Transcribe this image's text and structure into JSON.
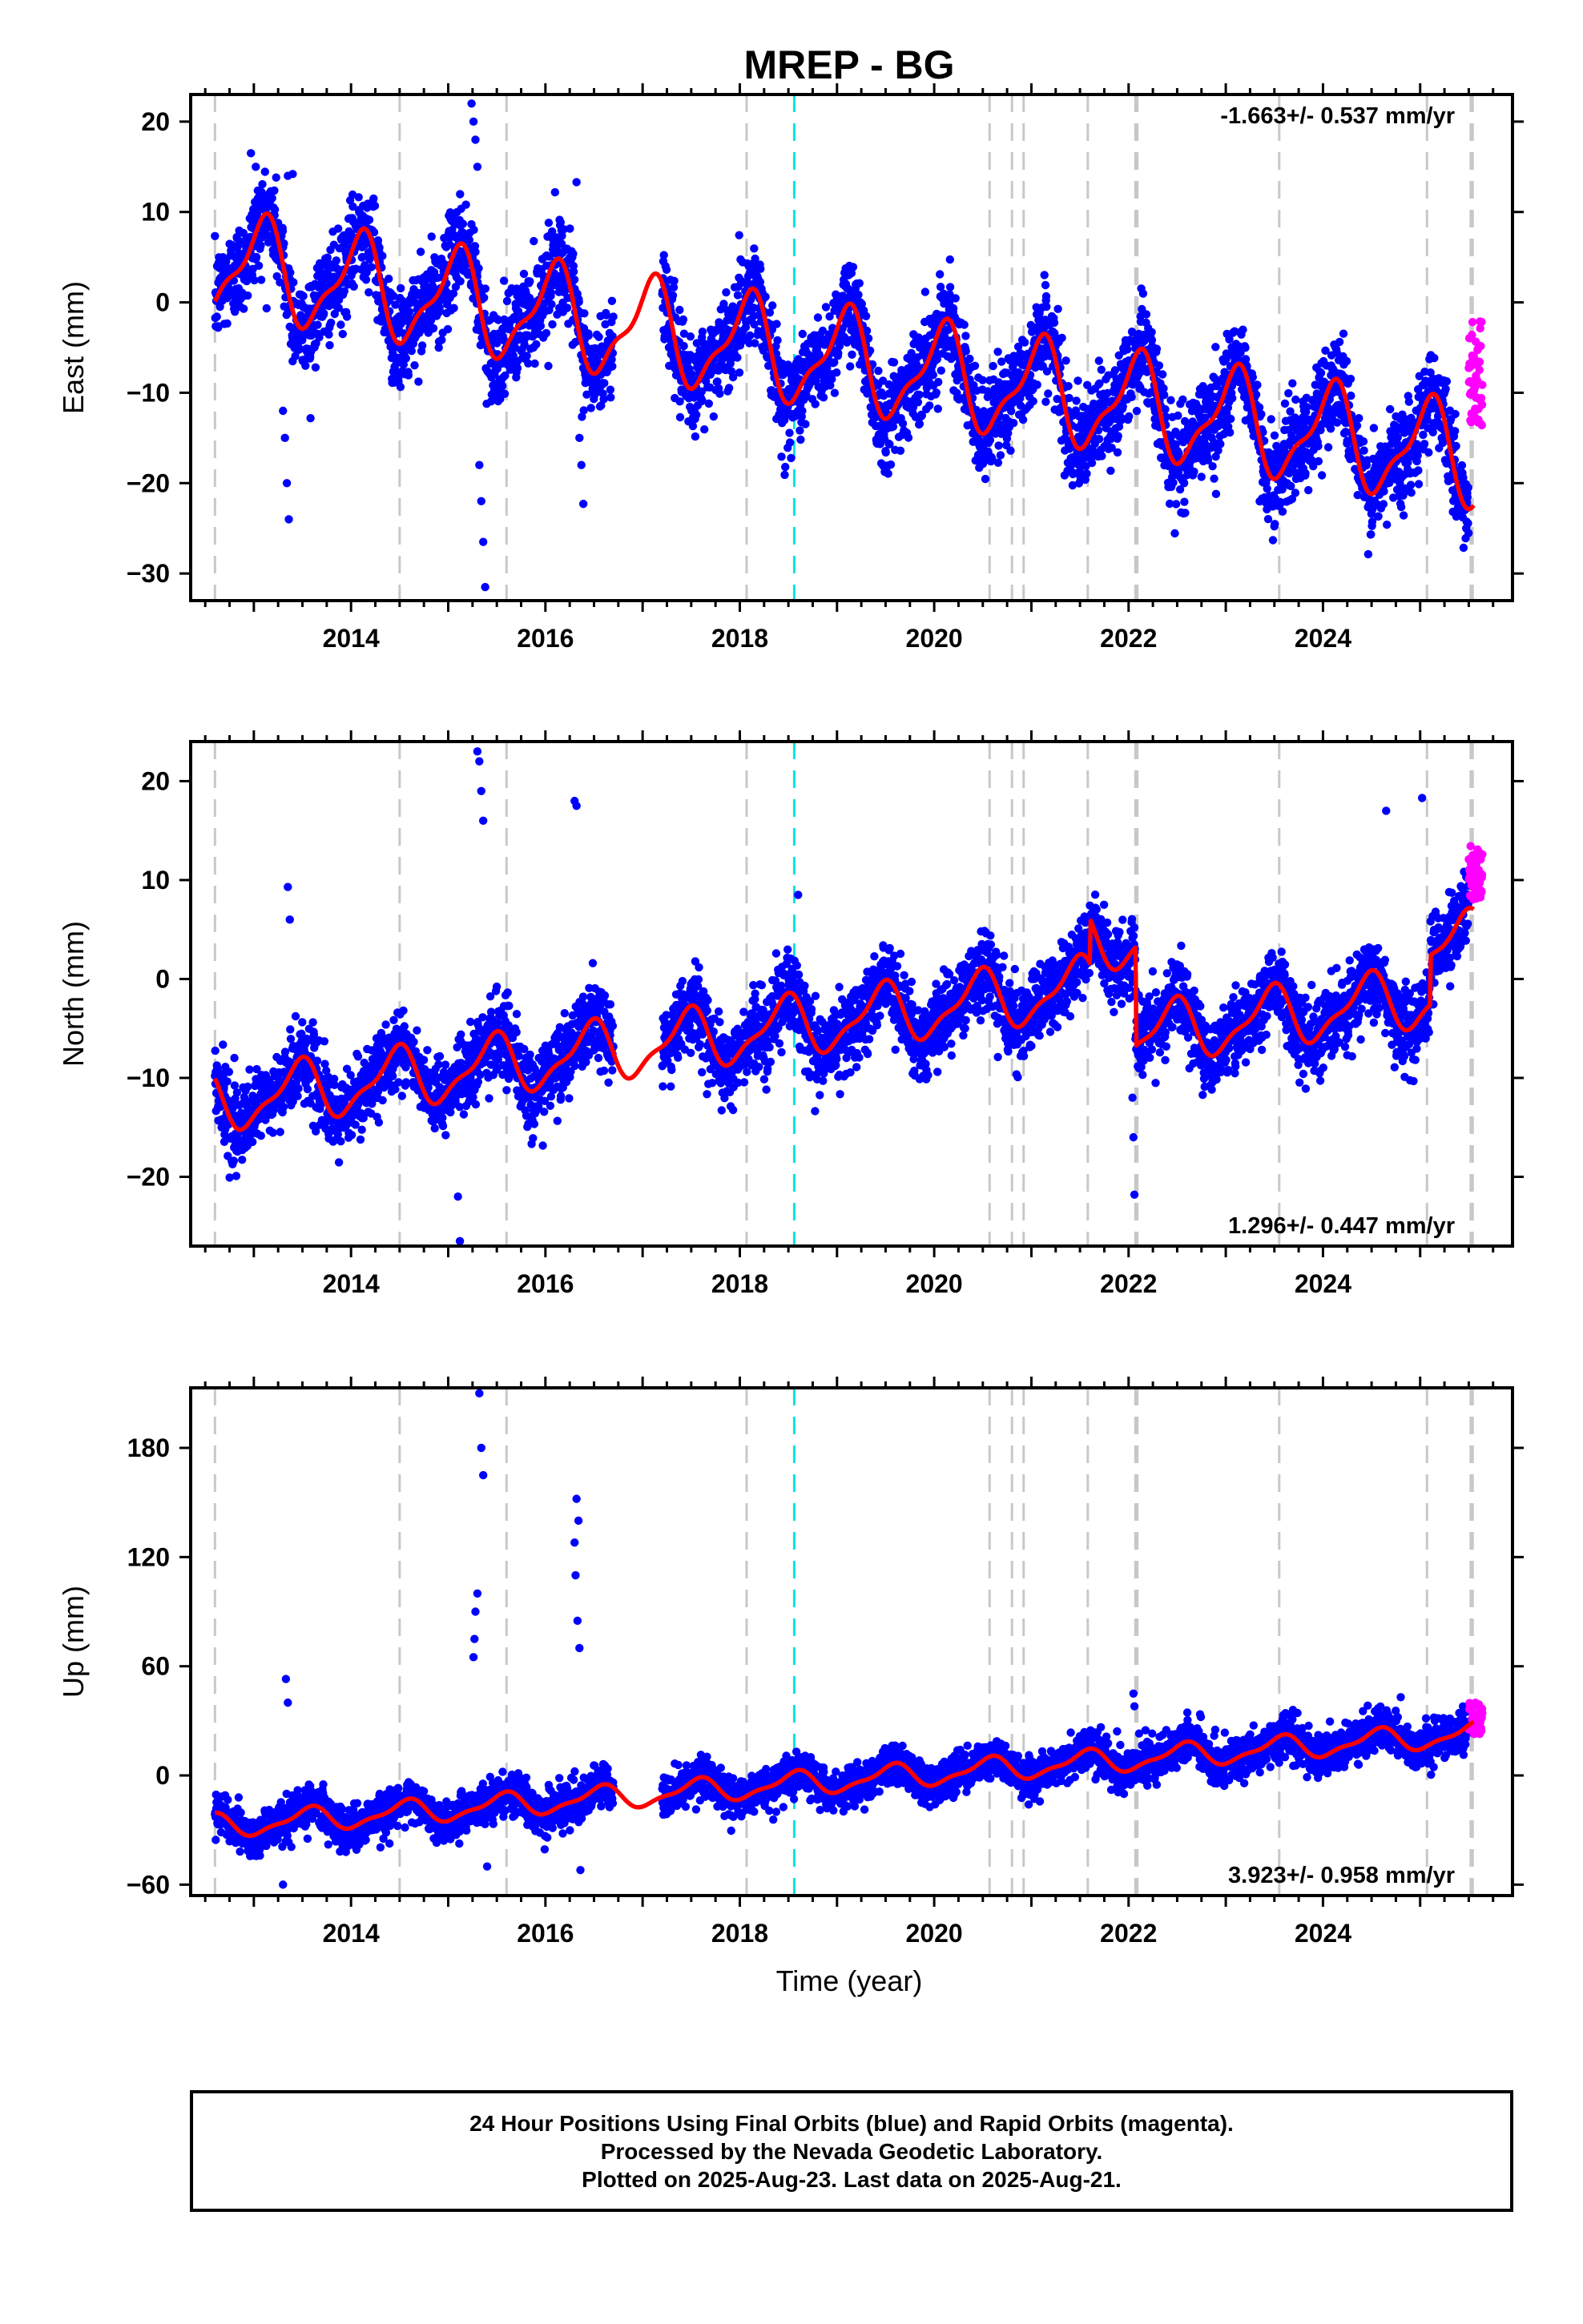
{
  "title": "MREP - BG",
  "xlabel": "Time (year)",
  "caption": [
    "24 Hour Positions Using Final Orbits (blue) and Rapid Orbits (magenta).",
    "Processed by the Nevada Geodetic Laboratory.",
    "Plotted on 2025-Aug-23. Last data on 2025-Aug-21."
  ],
  "colors": {
    "final_points": "#0000ff",
    "rapid_points": "#ff00ff",
    "model_line": "#ff0000",
    "event_lines": "#c8c8c8",
    "antenna_change_line": "#00e5e5"
  },
  "chart_data": [
    {
      "type": "scatter",
      "component": "east",
      "ylabel": "East (mm)",
      "rate_label": "-1.663+/- 0.537 mm/yr",
      "rate_label_position": "top-right",
      "xlim": [
        2012.35,
        2025.95
      ],
      "ylim": [
        -33,
        23
      ],
      "xticks": [
        2014,
        2016,
        2018,
        2020,
        2022,
        2024
      ],
      "yticks": [
        -30,
        -20,
        -10,
        0,
        10,
        20
      ],
      "trend": {
        "start": 2012.6,
        "end": 2025.55,
        "start_value": 4.3,
        "rate": -1.663
      },
      "seasonal": {
        "amplitude": 5.2,
        "peak_phase": 0.08
      },
      "noise_sd": 2.6,
      "rapid_points": {
        "start": 2025.5,
        "end": 2025.64,
        "ymin": -14,
        "ymax": -2
      },
      "outliers": [
        {
          "x": 2012.97,
          "y": 16.5
        },
        {
          "x": 2013.02,
          "y": 15
        },
        {
          "x": 2013.3,
          "y": -12
        },
        {
          "x": 2013.32,
          "y": -15
        },
        {
          "x": 2013.34,
          "y": -20
        },
        {
          "x": 2013.36,
          "y": -24
        },
        {
          "x": 2013.35,
          "y": 14
        },
        {
          "x": 2013.4,
          "y": 14.2
        },
        {
          "x": 2015.24,
          "y": 22
        },
        {
          "x": 2015.26,
          "y": 20
        },
        {
          "x": 2015.28,
          "y": 18
        },
        {
          "x": 2015.3,
          "y": 15
        },
        {
          "x": 2015.32,
          "y": -18
        },
        {
          "x": 2015.34,
          "y": -22
        },
        {
          "x": 2015.36,
          "y": -26.5
        },
        {
          "x": 2015.38,
          "y": -31.5
        },
        {
          "x": 2016.32,
          "y": 13.3
        },
        {
          "x": 2016.35,
          "y": -15
        },
        {
          "x": 2016.37,
          "y": -18
        },
        {
          "x": 2016.39,
          "y": -22.3
        },
        {
          "x": 2022.9,
          "y": -21.2
        },
        {
          "x": 2022.88,
          "y": -19.5
        },
        {
          "x": 2024.8,
          "y": -19
        }
      ],
      "events_dashed_gray": [
        2012.6,
        2014.5,
        2015.6,
        2018.07,
        2020.57,
        2020.8,
        2020.92,
        2021.58,
        2022.07,
        2022.09,
        2023.55,
        2025.07,
        2025.52,
        2025.54
      ],
      "events_dashed_cyan": [
        2018.56
      ],
      "gap": [
        2016.7,
        2017.2
      ]
    },
    {
      "type": "scatter",
      "component": "north",
      "ylabel": "North (mm)",
      "rate_label": "1.296+/- 0.447 mm/yr",
      "rate_label_position": "bottom-right",
      "xlim": [
        2012.35,
        2025.95
      ],
      "ylim": [
        -27,
        24
      ],
      "xticks": [
        2014,
        2016,
        2018,
        2020,
        2022,
        2024
      ],
      "yticks": [
        -20,
        -10,
        0,
        10,
        20
      ],
      "trend": {
        "start": 2012.6,
        "end": 2025.55,
        "start_value": -12.5,
        "rate": 1.296
      },
      "seasonal": {
        "amplitude": 2.8,
        "peak_phase": 0.45
      },
      "noise_sd": 1.9,
      "offsets": [
        {
          "x": 2021.6,
          "shift": 4.5
        },
        {
          "x": 2022.07,
          "shift": -10
        },
        {
          "x": 2025.1,
          "shift": 5
        }
      ],
      "rapid_points": {
        "start": 2025.5,
        "end": 2025.64,
        "ymin": 8,
        "ymax": 13.5
      },
      "outliers": [
        {
          "x": 2013.35,
          "y": 9.3
        },
        {
          "x": 2013.37,
          "y": 6
        },
        {
          "x": 2015.1,
          "y": -22
        },
        {
          "x": 2015.12,
          "y": -26.5
        },
        {
          "x": 2015.3,
          "y": 23
        },
        {
          "x": 2015.32,
          "y": 22
        },
        {
          "x": 2015.34,
          "y": 19
        },
        {
          "x": 2015.36,
          "y": 16
        },
        {
          "x": 2016.3,
          "y": 18
        },
        {
          "x": 2016.32,
          "y": 17.5
        },
        {
          "x": 2018.6,
          "y": 8.5
        },
        {
          "x": 2022.04,
          "y": -12
        },
        {
          "x": 2022.05,
          "y": -16
        },
        {
          "x": 2022.06,
          "y": -21.8
        },
        {
          "x": 2024.65,
          "y": 17
        },
        {
          "x": 2025.02,
          "y": 18.3
        }
      ],
      "events_dashed_gray": [
        2012.6,
        2014.5,
        2015.6,
        2018.07,
        2020.57,
        2020.8,
        2020.92,
        2021.58,
        2022.07,
        2022.09,
        2023.55,
        2025.07,
        2025.52,
        2025.54
      ],
      "events_dashed_cyan": [
        2018.56
      ],
      "gap": [
        2016.7,
        2017.2
      ]
    },
    {
      "type": "scatter",
      "component": "up",
      "ylabel": "Up (mm)",
      "rate_label": "3.923+/- 0.958 mm/yr",
      "rate_label_position": "bottom-right",
      "xlim": [
        2012.35,
        2025.95
      ],
      "ylim": [
        -66,
        213
      ],
      "xticks": [
        2014,
        2016,
        2018,
        2020,
        2022,
        2024
      ],
      "yticks": [
        -60,
        0,
        60,
        120,
        180
      ],
      "trend": {
        "start": 2012.6,
        "end": 2025.55,
        "start_value": -28,
        "rate": 3.923
      },
      "seasonal": {
        "amplitude": 6,
        "peak_phase": 0.55
      },
      "noise_sd": 5.5,
      "rapid_points": {
        "start": 2025.5,
        "end": 2025.64,
        "ymin": 22,
        "ymax": 40
      },
      "outliers": [
        {
          "x": 2013.33,
          "y": 53
        },
        {
          "x": 2013.35,
          "y": 40
        },
        {
          "x": 2013.3,
          "y": -60
        },
        {
          "x": 2015.32,
          "y": 210
        },
        {
          "x": 2015.34,
          "y": 180
        },
        {
          "x": 2015.36,
          "y": 165
        },
        {
          "x": 2015.3,
          "y": 100
        },
        {
          "x": 2015.28,
          "y": 90
        },
        {
          "x": 2015.27,
          "y": 75
        },
        {
          "x": 2015.26,
          "y": 65
        },
        {
          "x": 2015.4,
          "y": -50
        },
        {
          "x": 2016.32,
          "y": 152
        },
        {
          "x": 2016.34,
          "y": 140
        },
        {
          "x": 2016.3,
          "y": 128
        },
        {
          "x": 2016.31,
          "y": 110
        },
        {
          "x": 2016.33,
          "y": 85
        },
        {
          "x": 2016.35,
          "y": 70
        },
        {
          "x": 2016.36,
          "y": -52
        },
        {
          "x": 2022.05,
          "y": 45
        },
        {
          "x": 2022.06,
          "y": 38
        },
        {
          "x": 2024.8,
          "y": 43
        }
      ],
      "events_dashed_gray": [
        2012.6,
        2014.5,
        2015.6,
        2018.07,
        2020.57,
        2020.8,
        2020.92,
        2021.58,
        2022.07,
        2022.09,
        2023.55,
        2025.07,
        2025.52,
        2025.54
      ],
      "events_dashed_cyan": [
        2018.56
      ],
      "gap": [
        2016.7,
        2017.2
      ]
    }
  ]
}
